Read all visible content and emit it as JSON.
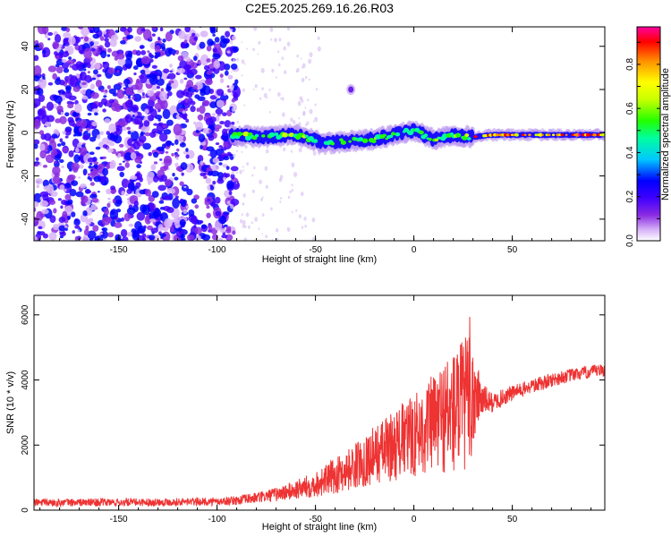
{
  "title": "C2E5.2025.269.16.26.R03",
  "chart_data": [
    {
      "type": "heatmap",
      "xlabel": "Height of straight line (km)",
      "ylabel": "Frequency (Hz)",
      "xlim": [
        -193,
        97
      ],
      "ylim": [
        -50,
        49
      ],
      "xticks": [
        -150,
        -100,
        -50,
        0,
        50
      ],
      "yticks": [
        -40,
        -20,
        0,
        20,
        40
      ],
      "colorbar": {
        "label": "Normalized spectral amplitude",
        "range": [
          0,
          0.97
        ],
        "ticks": [
          0.0,
          0.2,
          0.4,
          0.6,
          0.8
        ],
        "colormap": [
          "#ffffff",
          "#d8b4f8",
          "#8a2be2",
          "#3f00ff",
          "#0000ff",
          "#00c8ff",
          "#00ffa0",
          "#22ff00",
          "#c8ff00",
          "#ffff00",
          "#ff9000",
          "#ff0000",
          "#ff00a0"
        ]
      },
      "features": {
        "noise_region_x": [
          -193,
          -93
        ],
        "signal_band_x": [
          -93,
          97
        ],
        "signal_band_center_hz": [
          [
            -93,
            -1
          ],
          [
            -80,
            -2
          ],
          [
            -60,
            -1
          ],
          [
            -45,
            -5
          ],
          [
            -35,
            -4
          ],
          [
            -20,
            -3
          ],
          [
            -10,
            -1
          ],
          [
            0,
            1
          ],
          [
            10,
            -3
          ],
          [
            20,
            -1
          ],
          [
            30,
            -2
          ],
          [
            40,
            -1
          ],
          [
            60,
            -1
          ],
          [
            80,
            -1
          ],
          [
            97,
            -1
          ]
        ],
        "isolated_blob": {
          "x": -32,
          "y": 20
        }
      }
    },
    {
      "type": "line",
      "xlabel": "Height of straight line (km)",
      "ylabel": "SNR (10 * v/v)",
      "xlim": [
        -193,
        97
      ],
      "ylim": [
        0,
        6600
      ],
      "xticks": [
        -150,
        -100,
        -50,
        0,
        50
      ],
      "yticks": [
        0,
        2000,
        4000,
        6000
      ],
      "series": [
        {
          "name": "SNR",
          "color": "#ee3333",
          "x": [
            -193,
            -150,
            -100,
            -90,
            -80,
            -70,
            -60,
            -50,
            -40,
            -30,
            -20,
            -10,
            0,
            10,
            15,
            20,
            25,
            28,
            30,
            33,
            35,
            40,
            50,
            60,
            65,
            70,
            80,
            90,
            97
          ],
          "values": [
            230,
            240,
            260,
            300,
            380,
            480,
            620,
            800,
            1050,
            1350,
            1700,
            2000,
            2300,
            2700,
            2900,
            3000,
            3200,
            3400,
            3600,
            3500,
            3400,
            3300,
            3600,
            3800,
            3900,
            4000,
            4150,
            4250,
            4300
          ],
          "spread": [
            120,
            120,
            120,
            140,
            170,
            220,
            300,
            400,
            550,
            700,
            900,
            1100,
            1300,
            1500,
            1800,
            2000,
            2100,
            2200,
            2400,
            800,
            500,
            300,
            240,
            220,
            220,
            220,
            200,
            200,
            200
          ]
        }
      ]
    }
  ]
}
